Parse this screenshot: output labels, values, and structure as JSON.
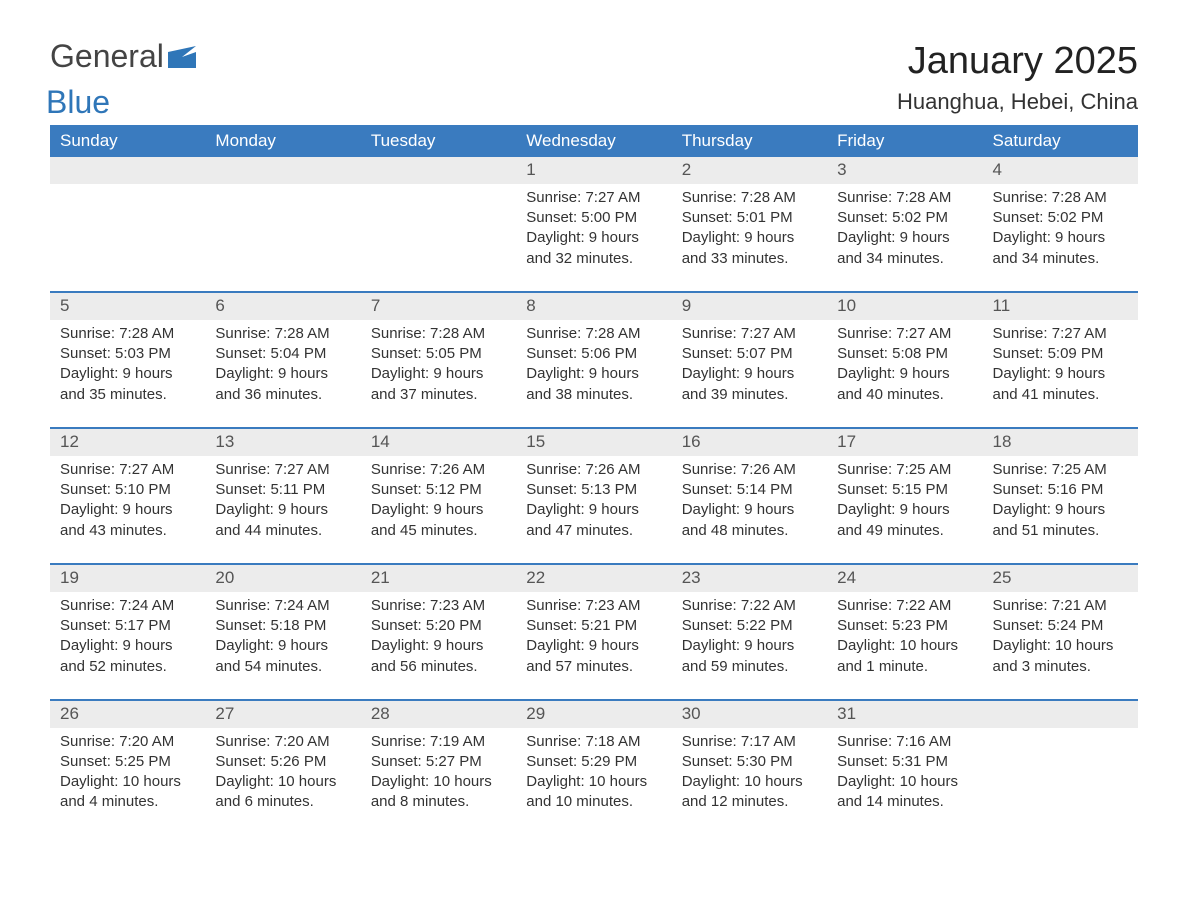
{
  "logo": {
    "general": "General",
    "blue": "Blue"
  },
  "title": "January 2025",
  "location": "Huanghua, Hebei, China",
  "colors": {
    "header_bg": "#3a7bbf",
    "header_text": "#ffffff",
    "daynum_bg": "#ececec",
    "border": "#3a7bbf",
    "text": "#333333",
    "logo_blue": "#2f76b8"
  },
  "day_names": [
    "Sunday",
    "Monday",
    "Tuesday",
    "Wednesday",
    "Thursday",
    "Friday",
    "Saturday"
  ],
  "weeks": [
    [
      null,
      null,
      null,
      {
        "n": "1",
        "sunrise": "7:27 AM",
        "sunset": "5:00 PM",
        "daylight": "9 hours and 32 minutes."
      },
      {
        "n": "2",
        "sunrise": "7:28 AM",
        "sunset": "5:01 PM",
        "daylight": "9 hours and 33 minutes."
      },
      {
        "n": "3",
        "sunrise": "7:28 AM",
        "sunset": "5:02 PM",
        "daylight": "9 hours and 34 minutes."
      },
      {
        "n": "4",
        "sunrise": "7:28 AM",
        "sunset": "5:02 PM",
        "daylight": "9 hours and 34 minutes."
      }
    ],
    [
      {
        "n": "5",
        "sunrise": "7:28 AM",
        "sunset": "5:03 PM",
        "daylight": "9 hours and 35 minutes."
      },
      {
        "n": "6",
        "sunrise": "7:28 AM",
        "sunset": "5:04 PM",
        "daylight": "9 hours and 36 minutes."
      },
      {
        "n": "7",
        "sunrise": "7:28 AM",
        "sunset": "5:05 PM",
        "daylight": "9 hours and 37 minutes."
      },
      {
        "n": "8",
        "sunrise": "7:28 AM",
        "sunset": "5:06 PM",
        "daylight": "9 hours and 38 minutes."
      },
      {
        "n": "9",
        "sunrise": "7:27 AM",
        "sunset": "5:07 PM",
        "daylight": "9 hours and 39 minutes."
      },
      {
        "n": "10",
        "sunrise": "7:27 AM",
        "sunset": "5:08 PM",
        "daylight": "9 hours and 40 minutes."
      },
      {
        "n": "11",
        "sunrise": "7:27 AM",
        "sunset": "5:09 PM",
        "daylight": "9 hours and 41 minutes."
      }
    ],
    [
      {
        "n": "12",
        "sunrise": "7:27 AM",
        "sunset": "5:10 PM",
        "daylight": "9 hours and 43 minutes."
      },
      {
        "n": "13",
        "sunrise": "7:27 AM",
        "sunset": "5:11 PM",
        "daylight": "9 hours and 44 minutes."
      },
      {
        "n": "14",
        "sunrise": "7:26 AM",
        "sunset": "5:12 PM",
        "daylight": "9 hours and 45 minutes."
      },
      {
        "n": "15",
        "sunrise": "7:26 AM",
        "sunset": "5:13 PM",
        "daylight": "9 hours and 47 minutes."
      },
      {
        "n": "16",
        "sunrise": "7:26 AM",
        "sunset": "5:14 PM",
        "daylight": "9 hours and 48 minutes."
      },
      {
        "n": "17",
        "sunrise": "7:25 AM",
        "sunset": "5:15 PM",
        "daylight": "9 hours and 49 minutes."
      },
      {
        "n": "18",
        "sunrise": "7:25 AM",
        "sunset": "5:16 PM",
        "daylight": "9 hours and 51 minutes."
      }
    ],
    [
      {
        "n": "19",
        "sunrise": "7:24 AM",
        "sunset": "5:17 PM",
        "daylight": "9 hours and 52 minutes."
      },
      {
        "n": "20",
        "sunrise": "7:24 AM",
        "sunset": "5:18 PM",
        "daylight": "9 hours and 54 minutes."
      },
      {
        "n": "21",
        "sunrise": "7:23 AM",
        "sunset": "5:20 PM",
        "daylight": "9 hours and 56 minutes."
      },
      {
        "n": "22",
        "sunrise": "7:23 AM",
        "sunset": "5:21 PM",
        "daylight": "9 hours and 57 minutes."
      },
      {
        "n": "23",
        "sunrise": "7:22 AM",
        "sunset": "5:22 PM",
        "daylight": "9 hours and 59 minutes."
      },
      {
        "n": "24",
        "sunrise": "7:22 AM",
        "sunset": "5:23 PM",
        "daylight": "10 hours and 1 minute."
      },
      {
        "n": "25",
        "sunrise": "7:21 AM",
        "sunset": "5:24 PM",
        "daylight": "10 hours and 3 minutes."
      }
    ],
    [
      {
        "n": "26",
        "sunrise": "7:20 AM",
        "sunset": "5:25 PM",
        "daylight": "10 hours and 4 minutes."
      },
      {
        "n": "27",
        "sunrise": "7:20 AM",
        "sunset": "5:26 PM",
        "daylight": "10 hours and 6 minutes."
      },
      {
        "n": "28",
        "sunrise": "7:19 AM",
        "sunset": "5:27 PM",
        "daylight": "10 hours and 8 minutes."
      },
      {
        "n": "29",
        "sunrise": "7:18 AM",
        "sunset": "5:29 PM",
        "daylight": "10 hours and 10 minutes."
      },
      {
        "n": "30",
        "sunrise": "7:17 AM",
        "sunset": "5:30 PM",
        "daylight": "10 hours and 12 minutes."
      },
      {
        "n": "31",
        "sunrise": "7:16 AM",
        "sunset": "5:31 PM",
        "daylight": "10 hours and 14 minutes."
      },
      null
    ]
  ],
  "labels": {
    "sunrise": "Sunrise: ",
    "sunset": "Sunset: ",
    "daylight": "Daylight: "
  }
}
